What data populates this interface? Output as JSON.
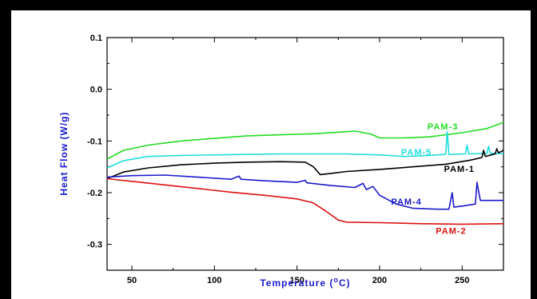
{
  "chart_data": {
    "type": "line",
    "title": "",
    "xlabel": "Temperature (°C)",
    "xlabel_parts": {
      "before": "Temperature (",
      "sup": "o",
      "after": "C)"
    },
    "ylabel": "Heat Flow (W/g)",
    "xlim": [
      35,
      275
    ],
    "ylim": [
      -0.35,
      0.1
    ],
    "x_ticks": [
      50,
      100,
      150,
      200,
      250
    ],
    "y_ticks": [
      0.1,
      0.0,
      -0.1,
      -0.2,
      -0.3
    ],
    "y_tick_labels": [
      "0.1",
      "0.0",
      "-0.1",
      "-0.2",
      "-0.3"
    ],
    "grid": false,
    "legend": "inline labels at right",
    "series": [
      {
        "name": "PAM-3",
        "color": "#22dd22",
        "points": [
          [
            35,
            -0.135
          ],
          [
            45,
            -0.118
          ],
          [
            60,
            -0.108
          ],
          [
            80,
            -0.1
          ],
          [
            100,
            -0.095
          ],
          [
            120,
            -0.09
          ],
          [
            140,
            -0.088
          ],
          [
            160,
            -0.086
          ],
          [
            180,
            -0.082
          ],
          [
            185,
            -0.081
          ],
          [
            195,
            -0.087
          ],
          [
            200,
            -0.094
          ],
          [
            215,
            -0.094
          ],
          [
            230,
            -0.092
          ],
          [
            250,
            -0.084
          ],
          [
            265,
            -0.076
          ],
          [
            275,
            -0.064
          ]
        ]
      },
      {
        "name": "PAM-5",
        "color": "#22dddd",
        "points": [
          [
            35,
            -0.152
          ],
          [
            45,
            -0.138
          ],
          [
            60,
            -0.13
          ],
          [
            80,
            -0.128
          ],
          [
            100,
            -0.127
          ],
          [
            120,
            -0.126
          ],
          [
            140,
            -0.125
          ],
          [
            160,
            -0.125
          ],
          [
            180,
            -0.125
          ],
          [
            200,
            -0.127
          ],
          [
            215,
            -0.13
          ],
          [
            230,
            -0.128
          ],
          [
            240,
            -0.126
          ],
          [
            241,
            -0.082
          ],
          [
            242,
            -0.126
          ],
          [
            252,
            -0.125
          ],
          [
            253,
            -0.108
          ],
          [
            254,
            -0.125
          ],
          [
            265,
            -0.124
          ],
          [
            266,
            -0.11
          ],
          [
            267,
            -0.124
          ],
          [
            275,
            -0.124
          ]
        ]
      },
      {
        "name": "PAM-1",
        "color": "#000000",
        "points": [
          [
            35,
            -0.173
          ],
          [
            45,
            -0.16
          ],
          [
            60,
            -0.152
          ],
          [
            80,
            -0.146
          ],
          [
            100,
            -0.143
          ],
          [
            120,
            -0.141
          ],
          [
            140,
            -0.14
          ],
          [
            155,
            -0.141
          ],
          [
            160,
            -0.15
          ],
          [
            164,
            -0.165
          ],
          [
            170,
            -0.163
          ],
          [
            180,
            -0.159
          ],
          [
            200,
            -0.155
          ],
          [
            220,
            -0.15
          ],
          [
            240,
            -0.145
          ],
          [
            255,
            -0.137
          ],
          [
            262,
            -0.132
          ],
          [
            263,
            -0.118
          ],
          [
            264,
            -0.13
          ],
          [
            270,
            -0.125
          ],
          [
            271,
            -0.115
          ],
          [
            272,
            -0.123
          ],
          [
            275,
            -0.118
          ]
        ]
      },
      {
        "name": "PAM-4",
        "color": "#1a1acc",
        "points": [
          [
            35,
            -0.17
          ],
          [
            50,
            -0.167
          ],
          [
            70,
            -0.166
          ],
          [
            90,
            -0.17
          ],
          [
            110,
            -0.174
          ],
          [
            115,
            -0.168
          ],
          [
            116,
            -0.174
          ],
          [
            130,
            -0.177
          ],
          [
            150,
            -0.18
          ],
          [
            155,
            -0.176
          ],
          [
            156,
            -0.181
          ],
          [
            170,
            -0.186
          ],
          [
            185,
            -0.19
          ],
          [
            190,
            -0.182
          ],
          [
            192,
            -0.194
          ],
          [
            196,
            -0.188
          ],
          [
            200,
            -0.205
          ],
          [
            210,
            -0.222
          ],
          [
            220,
            -0.23
          ],
          [
            235,
            -0.232
          ],
          [
            242,
            -0.232
          ],
          [
            244,
            -0.2
          ],
          [
            245,
            -0.228
          ],
          [
            250,
            -0.226
          ],
          [
            258,
            -0.222
          ],
          [
            259,
            -0.18
          ],
          [
            261,
            -0.215
          ],
          [
            275,
            -0.215
          ]
        ]
      },
      {
        "name": "PAM-2",
        "color": "#dd1111",
        "points": [
          [
            35,
            -0.173
          ],
          [
            50,
            -0.178
          ],
          [
            70,
            -0.185
          ],
          [
            90,
            -0.192
          ],
          [
            110,
            -0.199
          ],
          [
            130,
            -0.205
          ],
          [
            150,
            -0.212
          ],
          [
            160,
            -0.22
          ],
          [
            168,
            -0.237
          ],
          [
            175,
            -0.253
          ],
          [
            180,
            -0.257
          ],
          [
            200,
            -0.258
          ],
          [
            225,
            -0.26
          ],
          [
            250,
            -0.261
          ],
          [
            275,
            -0.26
          ]
        ]
      }
    ],
    "annotations": [
      {
        "text": "PAM-3",
        "x": 229,
        "y": -0.078,
        "color": "#22dd22"
      },
      {
        "text": "PAM-5",
        "x": 213,
        "y": -0.127,
        "color": "#22dddd"
      },
      {
        "text": "PAM-1",
        "x": 239,
        "y": -0.16,
        "color": "#000000"
      },
      {
        "text": "PAM-4",
        "x": 207,
        "y": -0.223,
        "color": "#1a1acc"
      },
      {
        "text": "PAM-2",
        "x": 234,
        "y": -0.28,
        "color": "#dd1111"
      }
    ]
  }
}
